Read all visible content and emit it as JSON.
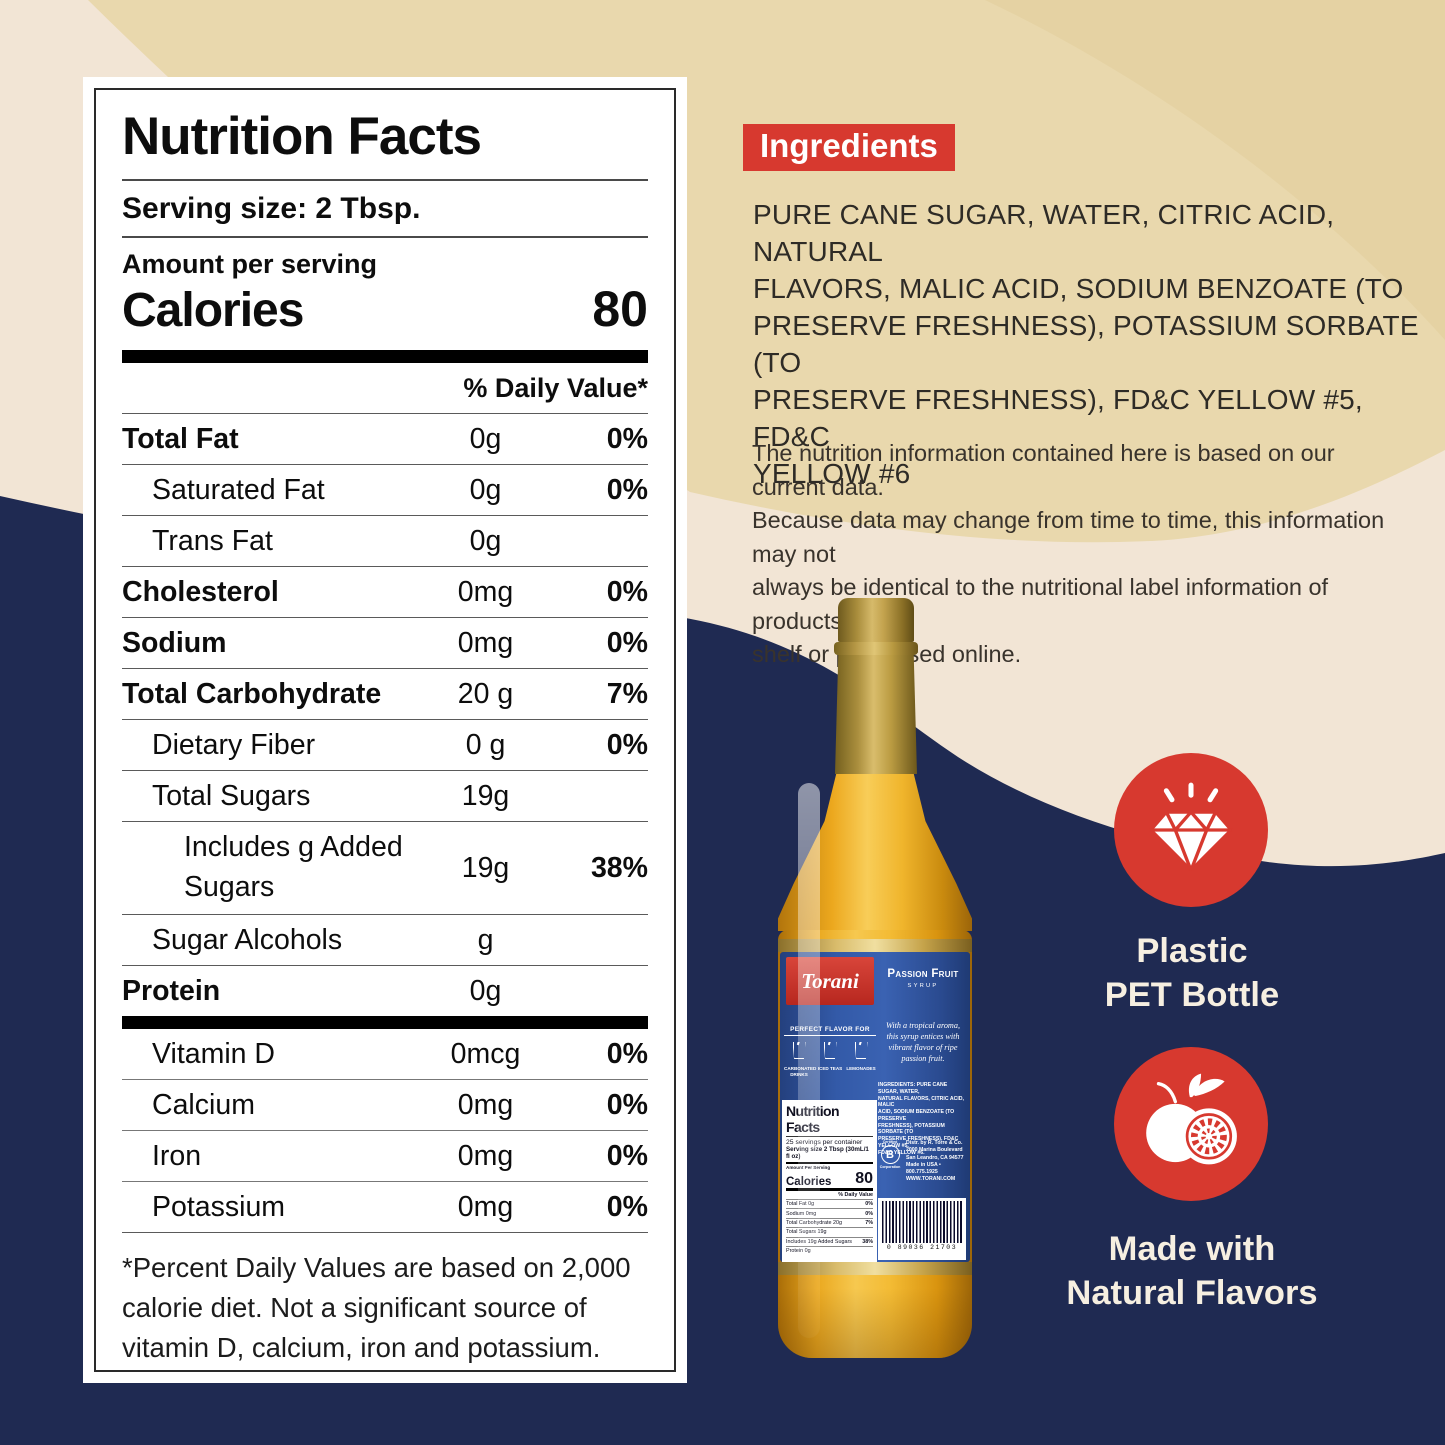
{
  "colors": {
    "cream": "#f2e5d5",
    "tan": "#e9d8ad",
    "navy": "#1f2a52",
    "accent_red": "#d7392f",
    "card_white": "#ffffff"
  },
  "nutrition_label": {
    "title": "Nutrition Facts",
    "serving_size": "Serving size: 2 Tbsp.",
    "amount_per_serving": "Amount per serving",
    "calories_label": "Calories",
    "calories_value": "80",
    "daily_value_header": "% Daily Value*",
    "rows": [
      {
        "label": "Total Fat",
        "amount": "0g",
        "dv": "0%",
        "bold": true,
        "indent": 0
      },
      {
        "label": "Saturated Fat",
        "amount": "0g",
        "dv": "0%",
        "bold": false,
        "indent": 1
      },
      {
        "label": "Trans Fat",
        "amount": "0g",
        "dv": "",
        "bold": false,
        "indent": 1
      },
      {
        "label": "Cholesterol",
        "amount": "0mg",
        "dv": "0%",
        "bold": true,
        "indent": 0
      },
      {
        "label": "Sodium",
        "amount": "0mg",
        "dv": "0%",
        "bold": true,
        "indent": 0
      },
      {
        "label": "Total Carbohydrate",
        "amount": "20 g",
        "dv": "7%",
        "bold": true,
        "indent": 0
      },
      {
        "label": "Dietary Fiber",
        "amount": "0 g",
        "dv": "0%",
        "bold": false,
        "indent": 1
      },
      {
        "label": "Total Sugars",
        "amount": "19g",
        "dv": "",
        "bold": false,
        "indent": 1
      },
      {
        "label": "Includes g Added Sugars",
        "amount": "19g",
        "dv": "38%",
        "bold": false,
        "indent": 2,
        "tall": true
      },
      {
        "label": "Sugar Alcohols",
        "amount": "g",
        "dv": "",
        "bold": false,
        "indent": 1
      },
      {
        "label": "Protein",
        "amount": "0g",
        "dv": "",
        "bold": true,
        "indent": 0
      }
    ],
    "vitamins": [
      {
        "label": "Vitamin D",
        "amount": "0mcg",
        "dv": "0%"
      },
      {
        "label": "Calcium",
        "amount": "0mg",
        "dv": "0%"
      },
      {
        "label": "Iron",
        "amount": "0mg",
        "dv": "0%"
      },
      {
        "label": "Potassium",
        "amount": "0mg",
        "dv": "0%"
      }
    ],
    "footnote_lines": [
      "*Percent Daily Values are based on 2,000",
      "calorie diet. Not a significant source of",
      "vitamin D, calcium, iron and potassium."
    ]
  },
  "ingredients_panel": {
    "heading": "Ingredients",
    "lines": [
      "PURE CANE SUGAR, WATER, CITRIC ACID, NATURAL",
      "FLAVORS, MALIC ACID, SODIUM BENZOATE (TO",
      "PRESERVE FRESHNESS), POTASSIUM SORBATE (TO",
      "PRESERVE FRESHNESS), FD&C YELLOW #5, FD&C",
      "YELLOW #6"
    ]
  },
  "disclaimer_lines": [
    "The nutrition information contained here is based on our current data.",
    "Because data may change from time to time, this information may not",
    "always be identical to the nutritional label information of products on",
    "shelf or purchased online."
  ],
  "features": [
    {
      "icon": "diamond",
      "lines": [
        "Plastic",
        "PET Bottle"
      ]
    },
    {
      "icon": "passion-fruit",
      "lines": [
        "Made with",
        "Natural Flavors"
      ]
    }
  ],
  "bottle": {
    "brand": "Torani",
    "flavor_name": "Passion Fruit",
    "syrup_word": "SYRUP",
    "perfect_flavor_for": "PERFECT FLAVOR FOR",
    "uses": [
      {
        "caption": "CARBONATED DRINKS"
      },
      {
        "caption": "ICED TEAS"
      },
      {
        "caption": "LEMONADES"
      }
    ],
    "tagline_lines": [
      "With a tropical aroma,",
      "this syrup entices with",
      "vibrant flavor of ripe",
      "passion fruit."
    ],
    "label_ingredients_lines": [
      "INGREDIENTS: PURE CANE SUGAR, WATER,",
      "NATURAL FLAVORS, CITRIC ACID, MALIC",
      "ACID, SODIUM BENZOATE (TO PRESERVE",
      "FRESHNESS), POTASSIUM SORBATE (TO",
      "PRESERVE FRESHNESS), FD&C YELLOW #5,",
      "FD&C YELLOW #6."
    ],
    "certified": {
      "top": "Certified",
      "letter": "B",
      "bottom": "Corporation"
    },
    "distributor_lines": [
      "Distr. by R. Torre & Co.",
      "2000 Marina Boulevard",
      "San Leandro, CA 94577",
      "Made in USA • 800.775.1925",
      "WWW.TORANI.COM"
    ],
    "mini_label": {
      "title": "Nutrition Facts",
      "servings": "25 servings per container",
      "serving_size": "Serving size 2 Tbsp (30mL/1 fl oz)",
      "amount_per_serving": "Amount Per Serving",
      "calories_label": "Calories",
      "calories_value": "80",
      "dv_header": "% Daily Value",
      "rows": [
        {
          "l": "Total Fat 0g",
          "v": "0%"
        },
        {
          "l": "Sodium 0mg",
          "v": "0%"
        },
        {
          "l": "Total Carbohydrate 20g",
          "v": "7%"
        },
        {
          "l": "Total Sugars 19g",
          "v": ""
        },
        {
          "l": "Includes 19g Added Sugars",
          "v": "38%"
        },
        {
          "l": "Protein 0g",
          "v": ""
        }
      ]
    },
    "barcode_digits": "0 89036 21703"
  }
}
